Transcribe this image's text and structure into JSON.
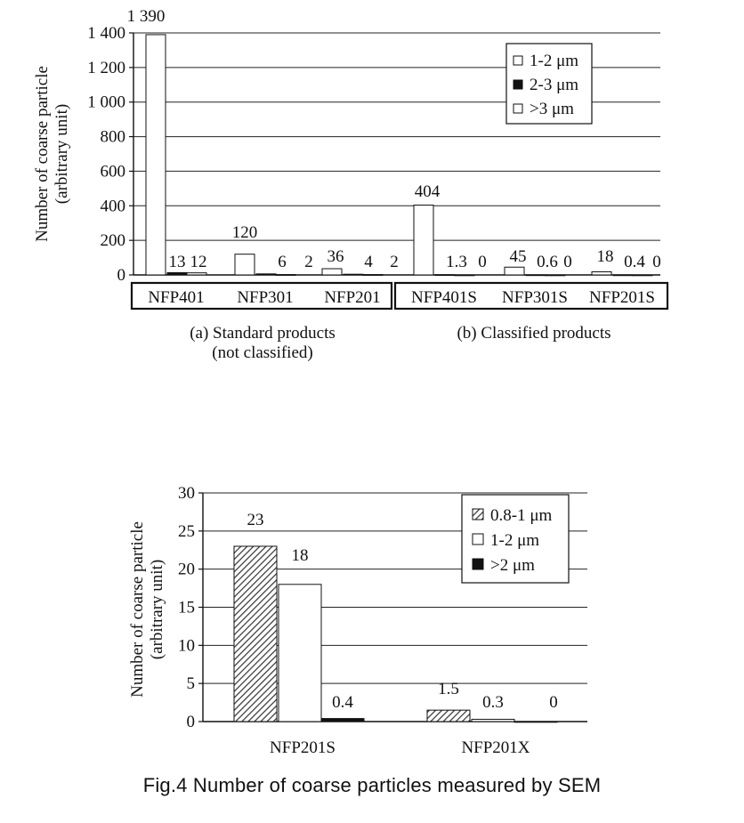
{
  "figure": {
    "caption": "Fig.4  Number of coarse particles measured by SEM"
  },
  "chart_data": [
    {
      "type": "bar",
      "ylabel_lines": [
        "Number of coarse particle",
        "(arbitrary unit)"
      ],
      "ylim": [
        0,
        1400
      ],
      "yticks": [
        0,
        200,
        400,
        600,
        800,
        1000,
        1200,
        1400
      ],
      "ytick_labels": [
        "0",
        "200",
        "400",
        "600",
        "800",
        "1 000",
        "1 200",
        "1 400"
      ],
      "grid": true,
      "legend_position": "top-right",
      "categories": [
        "NFP401",
        "NFP301",
        "NFP201",
        "NFP401S",
        "NFP301S",
        "NFP201S"
      ],
      "series": [
        {
          "name": "1-2 μm",
          "fill": "#ffffff",
          "values": [
            1390,
            120,
            36,
            404,
            45,
            18
          ]
        },
        {
          "name": "2-3 μm",
          "fill": "#111111",
          "values": [
            13,
            6,
            4,
            1.3,
            0.6,
            0.4
          ]
        },
        {
          "name": ">3 μm",
          "fill": "#ffffff",
          "values": [
            12,
            2,
            2,
            0,
            0,
            0
          ]
        }
      ],
      "data_labels": [
        [
          "1 390",
          "13",
          "12"
        ],
        [
          "120",
          "6",
          "2"
        ],
        [
          "36",
          "4",
          "2"
        ],
        [
          "404",
          "1.3",
          "0"
        ],
        [
          "45",
          "0.6",
          "0"
        ],
        [
          "18",
          "0.4",
          "0"
        ]
      ],
      "groups": [
        {
          "label_lines": [
            "(a) Standard products",
            "(not classified)"
          ],
          "categories": [
            "NFP401",
            "NFP301",
            "NFP201"
          ]
        },
        {
          "label_lines": [
            "(b) Classified products"
          ],
          "categories": [
            "NFP401S",
            "NFP301S",
            "NFP201S"
          ]
        }
      ]
    },
    {
      "type": "bar",
      "ylabel_lines": [
        "Number of coarse particle",
        "(arbitrary unit)"
      ],
      "ylim": [
        0,
        30
      ],
      "yticks": [
        0,
        5,
        10,
        15,
        20,
        25,
        30
      ],
      "ytick_labels": [
        "0",
        "5",
        "10",
        "15",
        "20",
        "25",
        "30"
      ],
      "grid": true,
      "legend_position": "top-right",
      "categories": [
        "NFP201S",
        "NFP201X"
      ],
      "series": [
        {
          "name": "0.8-1 μm",
          "fill": "hatched",
          "values": [
            23,
            1.5
          ]
        },
        {
          "name": "1-2 μm",
          "fill": "#ffffff",
          "values": [
            18,
            0.3
          ]
        },
        {
          "name": ">2 μm",
          "fill": "#111111",
          "values": [
            0.4,
            0
          ]
        }
      ],
      "data_labels": [
        [
          "23",
          "18",
          "0.4"
        ],
        [
          "1.5",
          "0.3",
          "0"
        ]
      ]
    }
  ]
}
